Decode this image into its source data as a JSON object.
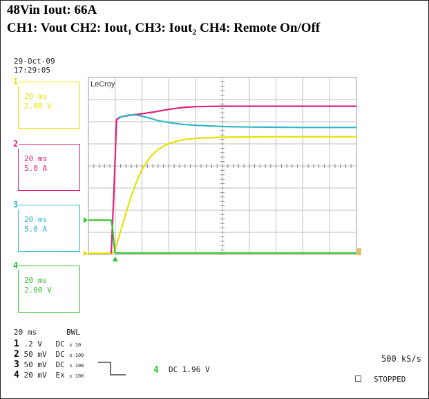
{
  "header": {
    "line1": "48Vin   Iout: 66A",
    "line2_parts": [
      "CH1: Vout   CH2: Iout",
      "1",
      " CH3: Iout",
      "2",
      " CH4: Remote On/Off"
    ]
  },
  "datetime": {
    "date": "29-Oct-09",
    "time": "17:29:05"
  },
  "brand": "LeCroy",
  "channels": [
    {
      "num": "1",
      "timebase": "20 ms",
      "scale": "2.00 V",
      "color": "#e8e000"
    },
    {
      "num": "2",
      "timebase": "20 ms",
      "scale": "5.0 A",
      "color": "#e0207a"
    },
    {
      "num": "3",
      "timebase": "20 ms",
      "scale": "5.0 A",
      "color": "#30b8c8"
    },
    {
      "num": "4",
      "timebase": "20 ms",
      "scale": "2.00 V",
      "color": "#30c030"
    }
  ],
  "status": {
    "timebase": "20 ms",
    "bwl": "BWL",
    "rows": [
      {
        "num": "1",
        "value": ".2  V",
        "coupling": "DC",
        "probe": "x 10"
      },
      {
        "num": "2",
        "value": "50 mV",
        "coupling": "DC",
        "probe": "x 100"
      },
      {
        "num": "3",
        "value": "50 mV",
        "coupling": "DC",
        "probe": "x 100"
      },
      {
        "num": "4",
        "value": "20 mV",
        "coupling": "Ex",
        "probe": "x 100"
      }
    ],
    "trigger_channel": "4",
    "trigger_info": "DC 1.96 V",
    "sample_rate": "500 kS/s",
    "run_state": "STOPPED"
  },
  "chart_data": {
    "type": "line",
    "x_divisions": 10,
    "y_divisions": 8,
    "grid": true,
    "series": [
      {
        "channel": "1",
        "color": "#e8e000",
        "x": [
          0,
          0.85,
          0.95,
          1.05,
          1.2,
          1.4,
          1.6,
          1.8,
          2.0,
          2.3,
          2.6,
          3.0,
          3.5,
          4.0,
          5.0,
          6.0,
          7.0,
          8.0,
          9.0,
          10.0
        ],
        "y": [
          0.05,
          0.06,
          0.1,
          0.45,
          1.05,
          1.85,
          2.65,
          3.3,
          3.85,
          4.4,
          4.75,
          5.02,
          5.18,
          5.25,
          5.3,
          5.31,
          5.32,
          5.32,
          5.32,
          5.32
        ]
      },
      {
        "channel": "2",
        "color": "#e0207a",
        "x": [
          0.85,
          0.95,
          1.05,
          1.2,
          1.5,
          2.0,
          2.5,
          3.0,
          3.5,
          4.0,
          5.0,
          6.0,
          7.0,
          8.0,
          9.0,
          10.0
        ],
        "y": [
          0.05,
          2.8,
          6.1,
          6.22,
          6.28,
          6.36,
          6.45,
          6.56,
          6.64,
          6.68,
          6.7,
          6.7,
          6.7,
          6.7,
          6.7,
          6.7
        ]
      },
      {
        "channel": "3",
        "color": "#30b8c8",
        "x": [
          1.1,
          1.2,
          1.5,
          1.8,
          2.0,
          2.3,
          2.6,
          3.0,
          3.5,
          4.0,
          5.0,
          6.0,
          7.0,
          8.0,
          9.0,
          10.0
        ],
        "y": [
          6.18,
          6.22,
          6.3,
          6.3,
          6.25,
          6.16,
          6.05,
          5.96,
          5.88,
          5.84,
          5.78,
          5.76,
          5.75,
          5.74,
          5.74,
          5.74
        ]
      },
      {
        "channel": "4",
        "color": "#30c030",
        "x": [
          0,
          0.85,
          0.9,
          0.95,
          1.0,
          10.0
        ],
        "y": [
          1.55,
          1.55,
          1.2,
          0.5,
          0.07,
          0.07
        ]
      }
    ]
  }
}
